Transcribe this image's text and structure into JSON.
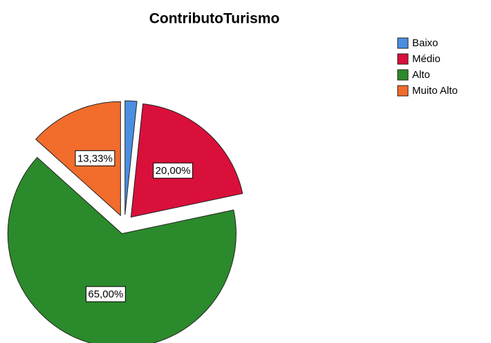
{
  "chart_data": {
    "type": "pie",
    "title": "ContributoTurismo",
    "categories": [
      "Baixo",
      "Médio",
      "Alto",
      "Muito Alto"
    ],
    "values": [
      1.67,
      20,
      65,
      13.33
    ],
    "value_labels": [
      null,
      "20,00%",
      "65,00%",
      "13,33%"
    ],
    "colors": [
      "#4a8fe0",
      "#d9103a",
      "#2b8a2b",
      "#f26c2c"
    ],
    "legend": "top-right"
  }
}
